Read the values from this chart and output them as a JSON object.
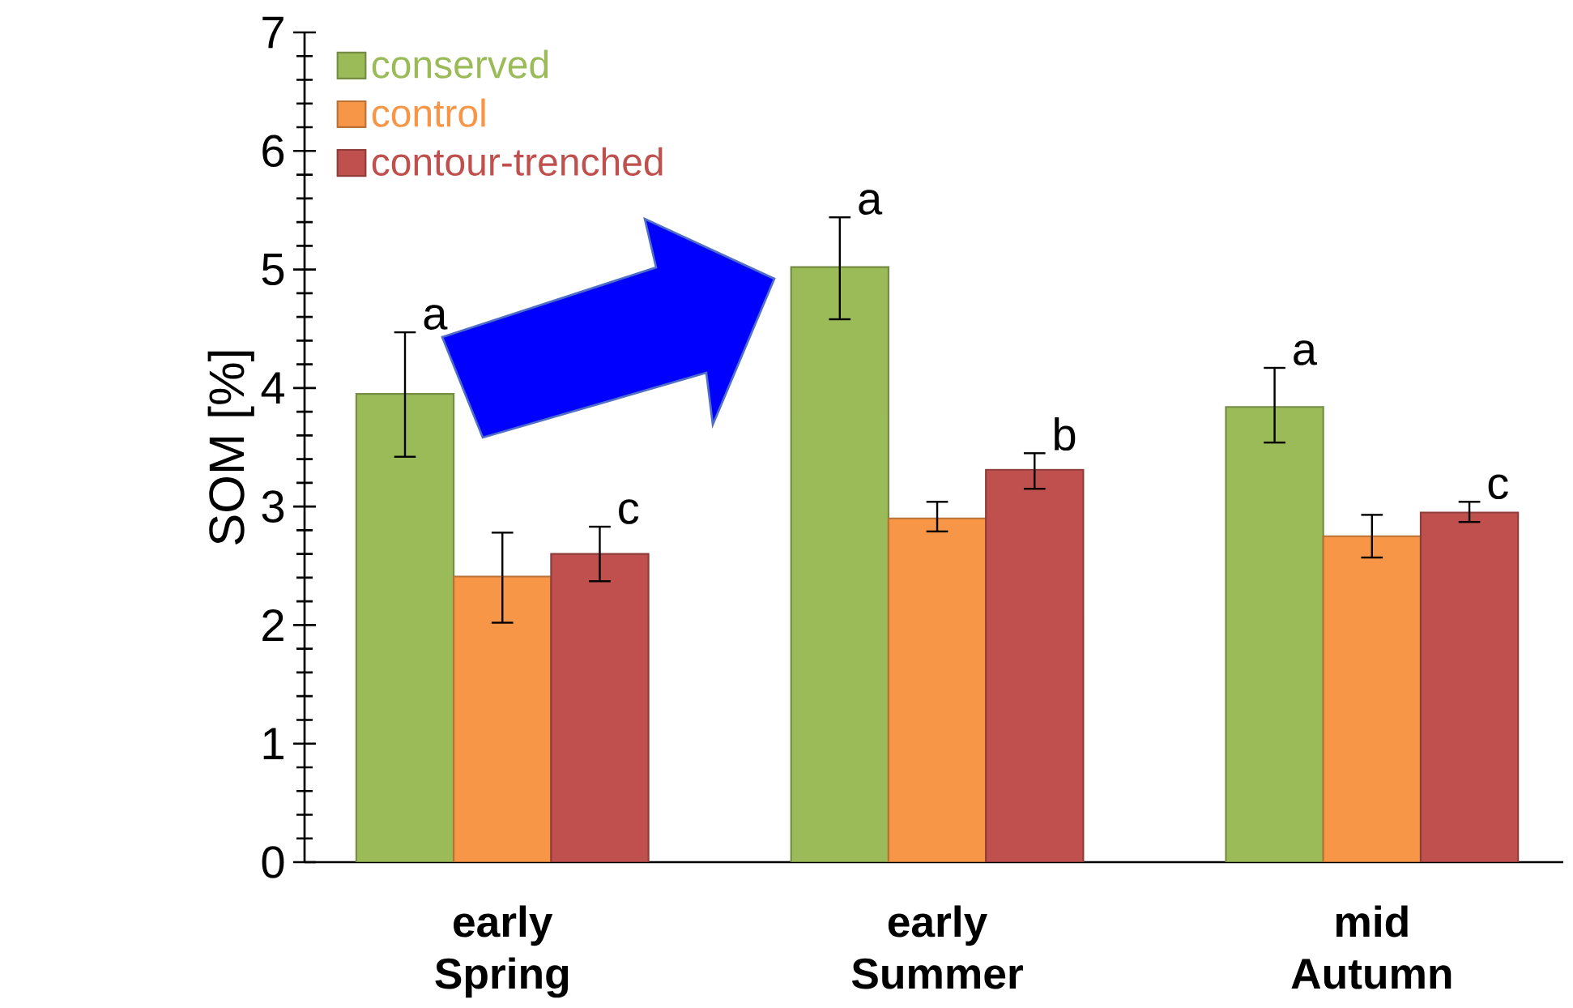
{
  "chart_data": {
    "type": "bar",
    "ylabel": "SOM [%]",
    "categories": [
      "early Spring",
      "early Summer",
      "mid Autumn"
    ],
    "series": [
      {
        "name": "conserved",
        "color": "#9bbb59",
        "values": [
          3.95,
          5.02,
          3.84
        ],
        "errors": [
          [
            3.42,
            4.47
          ],
          [
            4.58,
            5.44
          ],
          [
            3.54,
            4.17
          ]
        ]
      },
      {
        "name": "control",
        "color": "#f79646",
        "values": [
          2.41,
          2.9,
          2.75
        ],
        "errors": [
          [
            2.02,
            2.78
          ],
          [
            2.79,
            3.04
          ],
          [
            2.57,
            2.93
          ]
        ]
      },
      {
        "name": "contour-trenched",
        "color": "#c0504d",
        "values": [
          2.6,
          3.31,
          2.95
        ],
        "errors": [
          [
            2.37,
            2.83
          ],
          [
            3.15,
            3.45
          ],
          [
            2.87,
            3.04
          ]
        ]
      }
    ],
    "ylim": [
      0,
      7
    ],
    "yticks": [
      0,
      1,
      2,
      3,
      4,
      5,
      6,
      7
    ],
    "legend": "top left",
    "annotations": [
      "a",
      "c",
      "a",
      "b",
      "a",
      "c"
    ]
  }
}
